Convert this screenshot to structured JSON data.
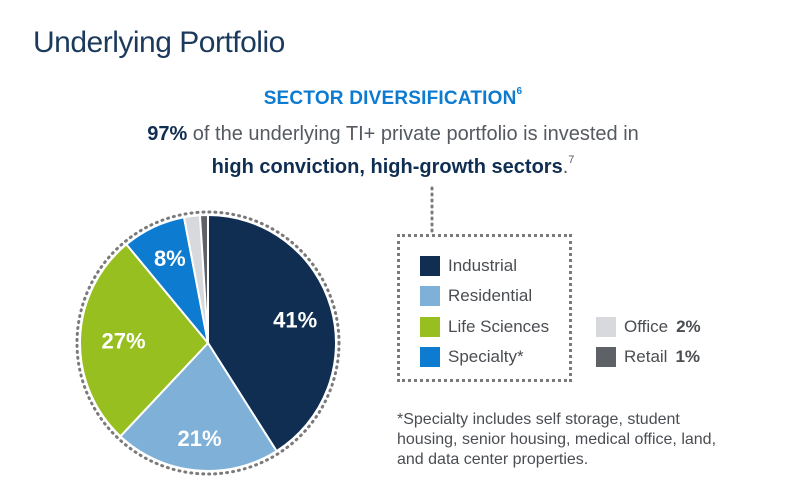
{
  "header": {
    "title": "Underlying Portfolio",
    "subtitle": "SECTOR DIVERSIFICATION",
    "subtitle_note": "6",
    "desc_strong": "97%",
    "desc_rest": " of the underlying TI+ private portfolio is invested in",
    "desc2_strong": "high conviction, high-growth sectors",
    "desc2_end": ".",
    "desc2_note": "7"
  },
  "chart_data": {
    "type": "pie",
    "title": "Sector Diversification",
    "categories": [
      "Industrial",
      "Residential",
      "Life Sciences",
      "Specialty*",
      "Office",
      "Retail"
    ],
    "values": [
      41,
      21,
      27,
      8,
      2,
      1
    ],
    "units": "%",
    "colors": [
      "#0f2e52",
      "#7eb0d8",
      "#96bf1f",
      "#0c7bd0",
      "#d8d9dc",
      "#5e6165"
    ],
    "labels": [
      "41%",
      "21%",
      "27%",
      "8%",
      "",
      ""
    ]
  },
  "legend": {
    "main": [
      {
        "label": "Industrial",
        "color": "#0f2e52"
      },
      {
        "label": "Residential",
        "color": "#7eb0d8"
      },
      {
        "label": "Life Sciences",
        "color": "#96bf1f"
      },
      {
        "label": "Specialty*",
        "color": "#0c7bd0"
      }
    ],
    "minor": [
      {
        "label": "Office",
        "value": "2%",
        "color": "#d8d9dc"
      },
      {
        "label": "Retail",
        "value": "1%",
        "color": "#5e6165"
      }
    ]
  },
  "footnote": "*Specialty includes self storage, student housing, senior housing, medical office, land, and data center properties."
}
